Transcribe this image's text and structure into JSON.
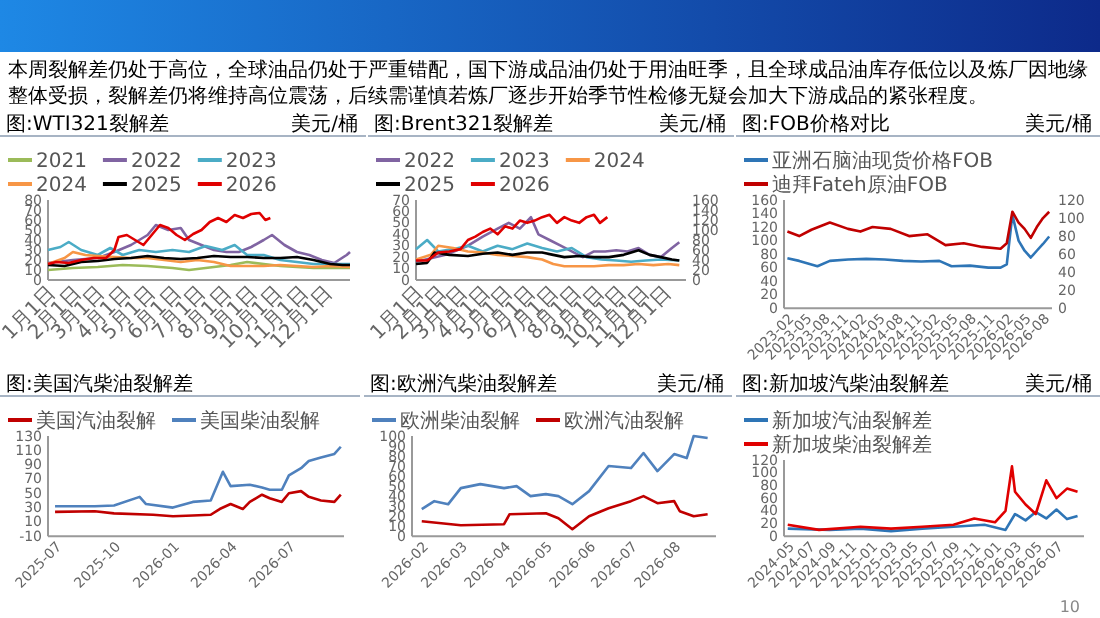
{
  "chart_data": [
    {
      "type": "line",
      "title": "图:WTI321裂解差",
      "ylabel": "美元/桶",
      "legend": "top",
      "annotations": [
        "本周裂解差仍处于高位，全球油品仍处于严重错配，国下游成品油仍处于用油旺季，且全球成品油库存低位以及炼厂因地缘整体受损，裂解差仍将维持高位震荡，后续需谨慎若炼厂逐步开始季节性检修无疑会加大下游成品的紧张程度。"
      ],
      "xlim": [
        "--01-01",
        "--12-31"
      ],
      "xticks": [
        {
          "value": "--01-01",
          "label": "1月1日"
        },
        {
          "value": "--02-01",
          "label": "2月1日"
        },
        {
          "value": "--03-01",
          "label": "3月1日"
        },
        {
          "value": "--04-01",
          "label": "4月1日"
        },
        {
          "value": "--05-01",
          "label": "5月1日"
        },
        {
          "value": "--06-01",
          "label": "6月1日"
        },
        {
          "value": "--07-01",
          "label": "7月1日"
        },
        {
          "value": "--08-01",
          "label": "8月1日"
        },
        {
          "value": "--09-01",
          "label": "9月1日"
        },
        {
          "value": "--10-01",
          "label": "10月1日"
        },
        {
          "value": "--11-01",
          "label": "11月1日"
        },
        {
          "value": "--12-01",
          "label": "12月1日"
        }
      ],
      "ylim": [
        0,
        80
      ],
      "yticks": [
        0,
        10,
        20,
        30,
        40,
        50,
        60,
        70,
        80
      ],
      "series": [
        {
          "name": "2021",
          "color": "#9bbb59",
          "x": [
            "--01-01",
            "--01-31",
            "--03-02",
            "--04-01",
            "--05-01",
            "--05-31",
            "--06-20",
            "--07-20",
            "--08-09",
            "--08-29",
            "--09-18",
            "--10-08",
            "--10-28",
            "--11-17",
            "--12-07",
            "--12-31"
          ],
          "values": [
            10,
            12,
            13,
            15,
            14,
            12,
            10,
            13,
            15,
            18,
            16,
            14,
            13,
            12,
            12,
            12
          ]
        },
        {
          "name": "2022",
          "color": "#8064a2",
          "x": [
            "--01-01",
            "--01-31",
            "--03-02",
            "--03-22",
            "--04-11",
            "--05-01",
            "--05-11",
            "--05-26",
            "--06-10",
            "--06-20",
            "--07-05",
            "--07-20",
            "--08-04",
            "--08-19",
            "--09-03",
            "--09-18",
            "--09-28",
            "--10-13",
            "--10-28",
            "--11-12",
            "--11-27",
            "--12-12",
            "--12-27",
            "--12-31"
          ],
          "values": [
            17,
            20,
            22,
            28,
            35,
            45,
            55,
            50,
            52,
            40,
            35,
            30,
            28,
            28,
            33,
            40,
            45,
            35,
            28,
            25,
            20,
            17,
            25,
            28
          ]
        },
        {
          "name": "2023",
          "color": "#4bacc6",
          "x": [
            "--01-01",
            "--01-16",
            "--01-26",
            "--02-10",
            "--03-02",
            "--03-17",
            "--04-01",
            "--04-21",
            "--05-11",
            "--05-31",
            "--06-20",
            "--07-10",
            "--07-30",
            "--08-14",
            "--08-29",
            "--09-18",
            "--10-08",
            "--10-28",
            "--11-17",
            "--12-07",
            "--12-31"
          ],
          "values": [
            30,
            33,
            38,
            30,
            25,
            32,
            25,
            30,
            28,
            30,
            28,
            34,
            30,
            35,
            25,
            25,
            20,
            18,
            16,
            16,
            16
          ]
        },
        {
          "name": "2024",
          "color": "#f79646",
          "x": [
            "--01-01",
            "--01-21",
            "--01-31",
            "--02-15",
            "--03-02",
            "--03-22",
            "--04-11",
            "--05-01",
            "--05-21",
            "--06-10",
            "--06-30",
            "--07-20",
            "--08-09",
            "--08-29",
            "--09-18",
            "--10-08",
            "--10-28",
            "--11-17",
            "--12-07",
            "--12-31"
          ],
          "values": [
            16,
            22,
            28,
            25,
            24,
            23,
            22,
            22,
            20,
            18,
            20,
            18,
            14,
            14,
            14,
            15,
            14,
            13,
            14,
            13
          ]
        },
        {
          "name": "2025",
          "color": "#000000",
          "x": [
            "--01-01",
            "--01-21",
            "--02-10",
            "--03-02",
            "--03-22",
            "--04-11",
            "--05-01",
            "--05-21",
            "--06-10",
            "--06-30",
            "--07-20",
            "--08-09",
            "--08-29",
            "--09-18",
            "--10-08",
            "--10-28",
            "--11-17",
            "--12-07",
            "--12-22",
            "--12-31"
          ],
          "values": [
            15,
            14,
            18,
            19,
            21,
            22,
            24,
            22,
            21,
            22,
            24,
            23,
            23,
            22,
            22,
            23,
            20,
            16,
            15,
            15
          ]
        },
        {
          "name": "2026",
          "color": "#e00000",
          "x": [
            "--01-01",
            "--01-11",
            "--01-26",
            "--02-10",
            "--02-25",
            "--03-12",
            "--03-22",
            "--03-27",
            "--04-06",
            "--04-16",
            "--04-26",
            "--05-06",
            "--05-16",
            "--05-26",
            "--06-05",
            "--06-15",
            "--06-25",
            "--07-05",
            "--07-15",
            "--07-25",
            "--08-04",
            "--08-14",
            "--08-24",
            "--09-03",
            "--09-13",
            "--09-20",
            "--09-26"
          ],
          "values": [
            16,
            18,
            17,
            20,
            22,
            22,
            30,
            43,
            45,
            40,
            35,
            45,
            55,
            52,
            45,
            40,
            46,
            50,
            58,
            62,
            58,
            65,
            62,
            66,
            67,
            60,
            62
          ]
        }
      ]
    },
    {
      "type": "line",
      "title": "图:Brent321裂解差",
      "y2label": "美元/桶",
      "legend": "top",
      "xlim": [
        "--01-01",
        "--12-31"
      ],
      "xticks": [
        {
          "value": "--01-01",
          "label": "1月1日"
        },
        {
          "value": "--02-01",
          "label": "2月1日"
        },
        {
          "value": "--03-01",
          "label": "3月1日"
        },
        {
          "value": "--04-01",
          "label": "4月1日"
        },
        {
          "value": "--05-01",
          "label": "5月1日"
        },
        {
          "value": "--06-01",
          "label": "6月1日"
        },
        {
          "value": "--07-01",
          "label": "7月1日"
        },
        {
          "value": "--08-01",
          "label": "8月1日"
        },
        {
          "value": "--09-01",
          "label": "9月1日"
        },
        {
          "value": "--10-01",
          "label": "10月1日"
        },
        {
          "value": "--11-01",
          "label": "11月1日"
        },
        {
          "value": "--12-01",
          "label": "12月1日"
        }
      ],
      "ylim": [
        0,
        70
      ],
      "yticks": [
        0,
        10,
        20,
        30,
        40,
        50,
        60,
        70
      ],
      "y2lim": [
        0,
        160
      ],
      "y2ticks": [
        0,
        20,
        40,
        60,
        80,
        100,
        120,
        140,
        160
      ],
      "series": [
        {
          "name": "2022",
          "color": "#8064a2",
          "x": [
            "--01-01",
            "--02-10",
            "--03-12",
            "--04-01",
            "--04-21",
            "--05-06",
            "--05-21",
            "--06-05",
            "--06-15",
            "--06-30",
            "--07-15",
            "--07-30",
            "--08-14",
            "--08-29",
            "--09-13",
            "--09-28",
            "--10-13",
            "--10-28",
            "--11-12",
            "--11-27",
            "--12-12",
            "--12-22"
          ],
          "values": [
            16,
            22,
            30,
            38,
            45,
            50,
            45,
            55,
            40,
            35,
            30,
            25,
            20,
            25,
            25,
            26,
            25,
            28,
            22,
            20,
            28,
            33
          ]
        },
        {
          "name": "2023",
          "color": "#4bacc6",
          "x": [
            "--01-01",
            "--01-16",
            "--01-31",
            "--02-20",
            "--03-12",
            "--04-01",
            "--04-21",
            "--05-11",
            "--05-31",
            "--06-20",
            "--07-10",
            "--07-30",
            "--08-19",
            "--09-08",
            "--09-28",
            "--10-18",
            "--11-07",
            "--11-27",
            "--12-22"
          ],
          "values": [
            27,
            35,
            25,
            27,
            30,
            25,
            30,
            27,
            32,
            28,
            25,
            28,
            20,
            18,
            17,
            16,
            17,
            18,
            17
          ]
        },
        {
          "name": "2024",
          "color": "#f79646",
          "x": [
            "--01-01",
            "--01-21",
            "--01-31",
            "--02-20",
            "--03-12",
            "--04-01",
            "--04-21",
            "--05-11",
            "--05-31",
            "--06-20",
            "--07-05",
            "--07-20",
            "--08-09",
            "--08-29",
            "--09-18",
            "--10-08",
            "--10-28",
            "--11-17",
            "--12-07",
            "--12-22"
          ],
          "values": [
            18,
            22,
            30,
            28,
            25,
            24,
            22,
            21,
            20,
            18,
            14,
            12,
            12,
            12,
            13,
            13,
            14,
            13,
            14,
            13
          ]
        },
        {
          "name": "2025",
          "color": "#000000",
          "x": [
            "--01-01",
            "--01-16",
            "--01-26",
            "--02-15",
            "--03-12",
            "--04-01",
            "--04-21",
            "--05-11",
            "--05-31",
            "--06-20",
            "--07-05",
            "--07-20",
            "--08-09",
            "--08-29",
            "--09-18",
            "--10-08",
            "--10-28",
            "--11-12",
            "--11-27",
            "--12-12",
            "--12-22"
          ],
          "values": [
            14,
            15,
            24,
            22,
            21,
            23,
            24,
            22,
            24,
            24,
            22,
            20,
            21,
            20,
            20,
            22,
            26,
            22,
            20,
            18,
            17
          ]
        },
        {
          "name": "2026",
          "color": "#e00000",
          "x": [
            "--01-01",
            "--01-16",
            "--01-31",
            "--02-15",
            "--03-02",
            "--03-12",
            "--03-22",
            "--04-01",
            "--04-11",
            "--04-21",
            "--05-01",
            "--05-11",
            "--05-21",
            "--05-31",
            "--06-10",
            "--06-20",
            "--06-30",
            "--07-10",
            "--07-20",
            "--07-30",
            "--08-09",
            "--08-19",
            "--08-29",
            "--09-06",
            "--09-16"
          ],
          "values": [
            17,
            17,
            24,
            25,
            27,
            35,
            38,
            42,
            45,
            40,
            47,
            45,
            52,
            50,
            52,
            55,
            57,
            50,
            55,
            52,
            50,
            55,
            57,
            50,
            55
          ]
        }
      ]
    },
    {
      "type": "line",
      "title": "图:FOB价格对比",
      "y2label": "美元/桶",
      "legend": "top",
      "xlim": [
        "2023-01-15",
        "2026-09-15"
      ],
      "xticks": [
        "2023-02",
        "2023-05",
        "2023-08",
        "2023-11",
        "2024-02",
        "2024-05",
        "2024-08",
        "2024-11",
        "2025-02",
        "2025-05",
        "2025-08",
        "2025-11",
        "2026-02",
        "2026-05",
        "2026-08"
      ],
      "ylim": [
        0,
        160
      ],
      "yticks": [
        0,
        20,
        40,
        60,
        80,
        100,
        120,
        140,
        160
      ],
      "y2lim": [
        0,
        120
      ],
      "y2ticks": [
        0,
        20,
        40,
        60,
        80,
        100,
        120
      ],
      "series": [
        {
          "name": "亚洲石脑油现货价格FOB",
          "color": "#2e75b6",
          "x": [
            "2023-02",
            "2023-04",
            "2023-07",
            "2023-09",
            "2023-12",
            "2024-03",
            "2024-06",
            "2024-09",
            "2024-12",
            "2025-03",
            "2025-05",
            "2025-08",
            "2025-11",
            "2026-01",
            "2026-02",
            "2026-03",
            "2026-04",
            "2026-05",
            "2026-06",
            "2026-07",
            "2026-08",
            "2026-09"
          ],
          "values": [
            74,
            70,
            62,
            70,
            72,
            73,
            72,
            70,
            69,
            70,
            62,
            63,
            60,
            60,
            65,
            138,
            100,
            85,
            75,
            85,
            95,
            106
          ]
        },
        {
          "name": "迪拜Fateh原油FOB",
          "color": "#c00000",
          "axis": "y2",
          "x": [
            "2023-02",
            "2023-04",
            "2023-06",
            "2023-09",
            "2023-12",
            "2024-02",
            "2024-04",
            "2024-07",
            "2024-10",
            "2025-01",
            "2025-04",
            "2025-07",
            "2025-10",
            "2026-01",
            "2026-02",
            "2026-03",
            "2026-04",
            "2026-05",
            "2026-06",
            "2026-07",
            "2026-08",
            "2026-09"
          ],
          "values": [
            85,
            80,
            87,
            95,
            88,
            85,
            90,
            88,
            80,
            82,
            70,
            72,
            68,
            66,
            72,
            107,
            95,
            88,
            78,
            90,
            100,
            107
          ]
        }
      ]
    },
    {
      "type": "line",
      "title": "图:美国汽柴油裂解差",
      "legend": "top",
      "xlim": [
        "2025-06-20",
        "2026-09-25"
      ],
      "xticks": [
        "2025-07",
        "2025-10",
        "2026-01",
        "2026-04",
        "2026-07"
      ],
      "ylim": [
        -10,
        130
      ],
      "yticks": [
        -10,
        10,
        30,
        50,
        70,
        90,
        110,
        130
      ],
      "series": [
        {
          "name": "美国汽油裂解",
          "color": "#c00000",
          "x": [
            "2025-07-01",
            "2025-09-01",
            "2025-10-01",
            "2025-12-01",
            "2026-01-01",
            "2026-02-01",
            "2026-03-01",
            "2026-03-15",
            "2026-04-01",
            "2026-04-20",
            "2026-05-01",
            "2026-05-20",
            "2026-06-01",
            "2026-06-20",
            "2026-07-01",
            "2026-07-20",
            "2026-08-01",
            "2026-08-20",
            "2026-09-10",
            "2026-09-20"
          ],
          "values": [
            24,
            25,
            22,
            20,
            18,
            19,
            20,
            28,
            35,
            28,
            38,
            48,
            43,
            38,
            50,
            53,
            45,
            40,
            38,
            48
          ]
        },
        {
          "name": "美国柴油裂解",
          "color": "#4f81bd",
          "x": [
            "2025-07-01",
            "2025-09-01",
            "2025-10-01",
            "2025-11-10",
            "2025-11-20",
            "2026-01-01",
            "2026-02-01",
            "2026-03-01",
            "2026-03-20",
            "2026-04-01",
            "2026-05-01",
            "2026-05-20",
            "2026-06-01",
            "2026-06-20",
            "2026-07-01",
            "2026-07-20",
            "2026-08-01",
            "2026-08-20",
            "2026-09-10",
            "2026-09-20"
          ],
          "values": [
            32,
            32,
            33,
            45,
            35,
            30,
            38,
            40,
            80,
            60,
            62,
            58,
            55,
            55,
            75,
            85,
            95,
            100,
            105,
            115
          ]
        }
      ]
    },
    {
      "type": "line",
      "title": "图:欧洲汽柴油裂解差",
      "ylabel": "美元/桶",
      "legend": "top",
      "xlim": [
        "2026-01-25",
        "2026-08-31"
      ],
      "xticks": [
        "2026-02",
        "2026-03",
        "2026-04",
        "2026-05",
        "2026-06",
        "2026-07",
        "2026-08"
      ],
      "ylim": [
        0,
        100
      ],
      "yticks": [
        0,
        10,
        20,
        30,
        40,
        50,
        60,
        70,
        80,
        90,
        100
      ],
      "series": [
        {
          "name": "欧洲柴油裂解",
          "color": "#4f81bd",
          "x": [
            "2026-02-01",
            "2026-02-10",
            "2026-02-20",
            "2026-03-01",
            "2026-03-15",
            "2026-04-01",
            "2026-04-10",
            "2026-04-20",
            "2026-05-01",
            "2026-05-10",
            "2026-05-20",
            "2026-06-01",
            "2026-06-15",
            "2026-07-01",
            "2026-07-10",
            "2026-07-20",
            "2026-08-01",
            "2026-08-10",
            "2026-08-15",
            "2026-08-25"
          ],
          "values": [
            27,
            35,
            32,
            48,
            52,
            48,
            50,
            40,
            42,
            40,
            32,
            45,
            70,
            68,
            83,
            65,
            82,
            78,
            100,
            98
          ]
        },
        {
          "name": "欧洲汽油裂解",
          "color": "#c00000",
          "x": [
            "2026-02-01",
            "2026-02-15",
            "2026-03-01",
            "2026-04-01",
            "2026-04-05",
            "2026-05-01",
            "2026-05-10",
            "2026-05-20",
            "2026-06-01",
            "2026-06-15",
            "2026-07-01",
            "2026-07-10",
            "2026-07-20",
            "2026-08-01",
            "2026-08-05",
            "2026-08-15",
            "2026-08-25"
          ],
          "values": [
            15,
            13,
            11,
            12,
            22,
            23,
            18,
            7,
            20,
            28,
            35,
            40,
            33,
            35,
            25,
            20,
            22
          ]
        }
      ]
    },
    {
      "type": "line",
      "title": "图:新加坡汽柴油裂解差",
      "ylabel": "美元/桶",
      "legend": "top",
      "annotations": [
        "10"
      ],
      "xlim": [
        "2024-04-20",
        "2026-09-20"
      ],
      "xticks": [
        "2024-05",
        "2024-07",
        "2024-09",
        "2024-11",
        "2025-01",
        "2025-03",
        "2025-05",
        "2025-07",
        "2025-09",
        "2025-11",
        "2026-01",
        "2026-03",
        "2026-05",
        "2026-07"
      ],
      "ylim": [
        0,
        120
      ],
      "yticks": [
        0,
        20,
        40,
        60,
        80,
        100,
        120
      ],
      "series": [
        {
          "name": "新加坡汽油裂解差",
          "color": "#2e75b6",
          "x": [
            "2024-05",
            "2024-09",
            "2024-12",
            "2025-03",
            "2025-06",
            "2025-09",
            "2025-12",
            "2026-02",
            "2026-03",
            "2026-04",
            "2026-05",
            "2026-06",
            "2026-07",
            "2026-08",
            "2026-09"
          ],
          "values": [
            12,
            10,
            12,
            8,
            12,
            15,
            18,
            10,
            35,
            25,
            38,
            28,
            42,
            27,
            32
          ]
        },
        {
          "name": "新加坡柴油裂解差",
          "color": "#e00000",
          "x": [
            "2024-05",
            "2024-08",
            "2024-12",
            "2025-03",
            "2025-06",
            "2025-09",
            "2025-11",
            "2026-01",
            "2026-02",
            "2026-02-20",
            "2026-03",
            "2026-04",
            "2026-05",
            "2026-06",
            "2026-07",
            "2026-08",
            "2026-09"
          ],
          "values": [
            18,
            10,
            15,
            12,
            15,
            18,
            28,
            22,
            40,
            110,
            70,
            50,
            35,
            88,
            60,
            75,
            70
          ]
        }
      ]
    }
  ]
}
